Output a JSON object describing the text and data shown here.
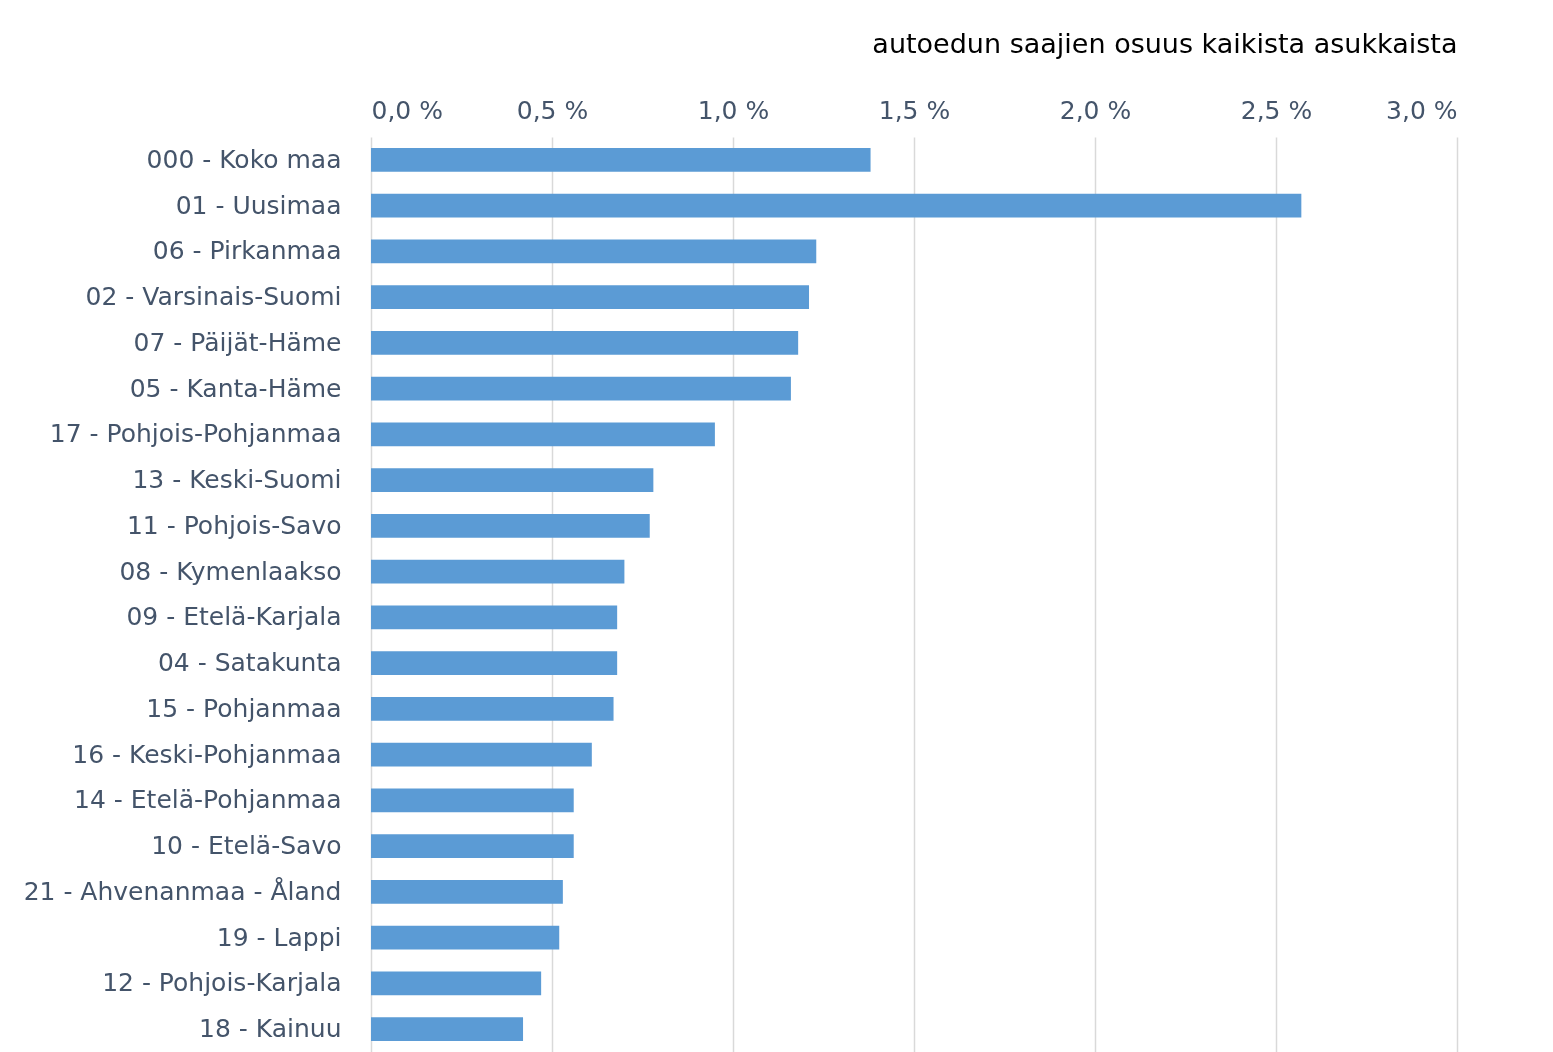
{
  "chart_data": {
    "type": "bar",
    "orientation": "horizontal",
    "xlabel": "autoedun saajien osuus kaikista asukkaista",
    "categories": [
      "000 - Koko maa",
      "01 - Uusimaa",
      "06 - Pirkanmaa",
      "02 - Varsinais-Suomi",
      "07 - Päijät-Häme",
      "05 - Kanta-Häme",
      "17 - Pohjois-Pohjanmaa",
      "13 - Keski-Suomi",
      "11 - Pohjois-Savo",
      "08 - Kymenlaakso",
      "09 - Etelä-Karjala",
      "04 - Satakunta",
      "15 - Pohjanmaa",
      "16 - Keski-Pohjanmaa",
      "14 - Etelä-Pohjanmaa",
      "10 - Etelä-Savo",
      "21 - Ahvenanmaa - Åland",
      "19 - Lappi",
      "12 - Pohjois-Karjala",
      "18 - Kainuu"
    ],
    "values": [
      1.38,
      2.57,
      1.23,
      1.21,
      1.18,
      1.16,
      0.95,
      0.78,
      0.77,
      0.7,
      0.68,
      0.68,
      0.67,
      0.61,
      0.56,
      0.56,
      0.53,
      0.52,
      0.47,
      0.42
    ],
    "color": "#5b9bd5",
    "xlim": [
      0,
      3
    ],
    "xticks": [
      {
        "value": 0,
        "label": "0,0 %"
      },
      {
        "value": 0.5,
        "label": "0,5 %"
      },
      {
        "value": 1,
        "label": "1,0 %"
      },
      {
        "value": 1.5,
        "label": "1,5 %"
      },
      {
        "value": 2,
        "label": "2,0 %"
      },
      {
        "value": 2.5,
        "label": "2,5 %"
      },
      {
        "value": 3,
        "label": "3,0 %"
      }
    ],
    "grid": true
  }
}
